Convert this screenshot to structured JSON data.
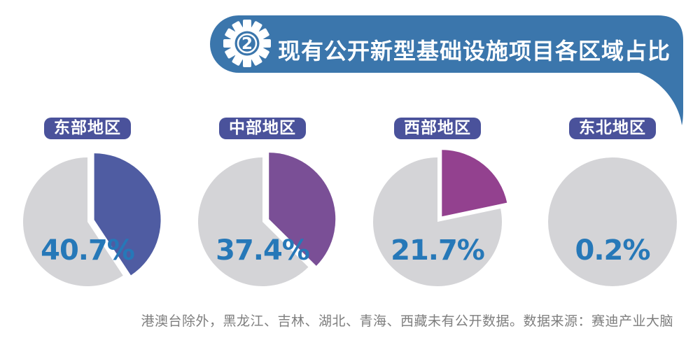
{
  "header": {
    "badge_number": "2",
    "title": "现有公开新型基础设施项目各区域占比"
  },
  "footnote": "港澳台除外，黑龙江、吉林、湖北、青海、西藏未有公开数据。数据来源：赛迪产业大脑",
  "colors": {
    "banner_blue": "#3b76ac",
    "badge_indigo": "#4a529b",
    "pie_remainder": "#d4d4d7",
    "percent_text": "#2678b8",
    "footnote_gray": "#7e7e7e"
  },
  "chart_data": {
    "type": "pie",
    "title": "现有公开新型基础设施项目各区域占比",
    "unit": "percent",
    "layout": "four separate single-highlight pies; highlighted slice starts at 12 o'clock, sweeps clockwise, exploded from center; remainder gray; no legend, value label inside each pie",
    "regions": [
      {
        "label": "东部地区",
        "value": 40.7,
        "display": "40.7%",
        "slice_color": "#4f5ca2"
      },
      {
        "label": "中部地区",
        "value": 37.4,
        "display": "37.4%",
        "slice_color": "#7a4f96"
      },
      {
        "label": "西部地区",
        "value": 21.7,
        "display": "21.7%",
        "slice_color": "#93418f"
      },
      {
        "label": "东北地区",
        "value": 0.2,
        "display": "0.2%",
        "slice_color": null
      }
    ]
  }
}
